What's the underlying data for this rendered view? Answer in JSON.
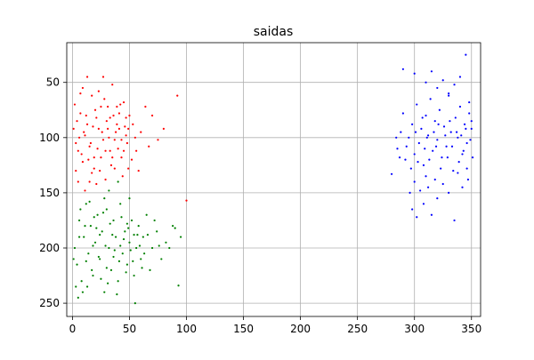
{
  "chart_data": {
    "type": "scatter",
    "title": "saidas",
    "xlabel": "",
    "ylabel": "",
    "xlim": [
      -5,
      358
    ],
    "ylim": [
      262,
      14
    ],
    "y_inverted": true,
    "grid": true,
    "legend": "none",
    "x_ticks": [
      0,
      50,
      100,
      150,
      200,
      250,
      300,
      350
    ],
    "y_ticks": [
      50,
      100,
      150,
      200,
      250
    ],
    "series": [
      {
        "color": "#ff0000",
        "points": [
          [
            2,
            70
          ],
          [
            4,
            85
          ],
          [
            6,
            100
          ],
          [
            8,
            115
          ],
          [
            10,
            95
          ],
          [
            12,
            80
          ],
          [
            14,
            120
          ],
          [
            16,
            105
          ],
          [
            18,
            90
          ],
          [
            20,
            75
          ],
          [
            22,
            110
          ],
          [
            24,
            130
          ],
          [
            26,
            95
          ],
          [
            28,
            65
          ],
          [
            30,
            85
          ],
          [
            32,
            100
          ],
          [
            34,
            125
          ],
          [
            36,
            80
          ],
          [
            38,
            95
          ],
          [
            40,
            110
          ],
          [
            42,
            70
          ],
          [
            44,
            135
          ],
          [
            46,
            90
          ],
          [
            48,
            105
          ],
          [
            50,
            80
          ],
          [
            52,
            120
          ],
          [
            55,
            100
          ],
          [
            58,
            130
          ],
          [
            3,
            130
          ],
          [
            5,
            140
          ],
          [
            7,
            60
          ],
          [
            9,
            55
          ],
          [
            11,
            148
          ],
          [
            13,
            45
          ],
          [
            15,
            140
          ],
          [
            17,
            62
          ],
          [
            19,
            128
          ],
          [
            21,
            142
          ],
          [
            23,
            58
          ],
          [
            25,
            118
          ],
          [
            27,
            45
          ],
          [
            29,
            138
          ],
          [
            31,
            72
          ],
          [
            33,
            112
          ],
          [
            35,
            52
          ],
          [
            37,
            102
          ],
          [
            39,
            88
          ],
          [
            41,
            78
          ],
          [
            43,
            118
          ],
          [
            45,
            68
          ],
          [
            47,
            98
          ],
          [
            49,
            128
          ],
          [
            1,
            92
          ],
          [
            3,
            105
          ],
          [
            5,
            112
          ],
          [
            7,
            78
          ],
          [
            9,
            122
          ],
          [
            11,
            98
          ],
          [
            13,
            88
          ],
          [
            15,
            108
          ],
          [
            17,
            132
          ],
          [
            19,
            118
          ],
          [
            21,
            82
          ],
          [
            23,
            92
          ],
          [
            25,
            72
          ],
          [
            27,
            102
          ],
          [
            29,
            112
          ],
          [
            31,
            92
          ],
          [
            33,
            82
          ],
          [
            35,
            118
          ],
          [
            37,
            128
          ],
          [
            39,
            72
          ],
          [
            41,
            92
          ],
          [
            43,
            102
          ],
          [
            45,
            112
          ],
          [
            47,
            82
          ],
          [
            49,
            92
          ],
          [
            53,
            88
          ],
          [
            56,
            112
          ],
          [
            60,
            95
          ],
          [
            64,
            72
          ],
          [
            67,
            108
          ],
          [
            70,
            80
          ],
          [
            75,
            102
          ],
          [
            80,
            92
          ],
          [
            92,
            62
          ],
          [
            100,
            157
          ]
        ]
      },
      {
        "color": "#008000",
        "points": [
          [
            2,
            200
          ],
          [
            4,
            215
          ],
          [
            6,
            175
          ],
          [
            8,
            230
          ],
          [
            10,
            190
          ],
          [
            12,
            160
          ],
          [
            14,
            205
          ],
          [
            16,
            180
          ],
          [
            18,
            225
          ],
          [
            20,
            195
          ],
          [
            22,
            170
          ],
          [
            24,
            210
          ],
          [
            26,
            185
          ],
          [
            28,
            240
          ],
          [
            30,
            165
          ],
          [
            32,
            200
          ],
          [
            34,
            220
          ],
          [
            36,
            175
          ],
          [
            38,
            190
          ],
          [
            40,
            230
          ],
          [
            42,
            160
          ],
          [
            44,
            205
          ],
          [
            46,
            185
          ],
          [
            48,
            215
          ],
          [
            50,
            195
          ],
          [
            52,
            175
          ],
          [
            54,
            225
          ],
          [
            56,
            200
          ],
          [
            58,
            180
          ],
          [
            60,
            210
          ],
          [
            62,
            190
          ],
          [
            65,
            170
          ],
          [
            68,
            220
          ],
          [
            70,
            200
          ],
          [
            74,
            185
          ],
          [
            78,
            210
          ],
          [
            82,
            195
          ],
          [
            88,
            180
          ],
          [
            3,
            235
          ],
          [
            5,
            245
          ],
          [
            7,
            165
          ],
          [
            9,
            240
          ],
          [
            11,
            180
          ],
          [
            13,
            235
          ],
          [
            15,
            158
          ],
          [
            17,
            220
          ],
          [
            19,
            172
          ],
          [
            21,
            182
          ],
          [
            23,
            208
          ],
          [
            25,
            228
          ],
          [
            27,
            168
          ],
          [
            29,
            198
          ],
          [
            31,
            232
          ],
          [
            33,
            178
          ],
          [
            35,
            188
          ],
          [
            37,
            202
          ],
          [
            39,
            242
          ],
          [
            41,
            212
          ],
          [
            43,
            172
          ],
          [
            45,
            192
          ],
          [
            47,
            222
          ],
          [
            49,
            182
          ],
          [
            51,
            202
          ],
          [
            53,
            212
          ],
          [
            55,
            250
          ],
          [
            57,
            188
          ],
          [
            59,
            198
          ],
          [
            61,
            218
          ],
          [
            63,
            205
          ],
          [
            66,
            188
          ],
          [
            72,
            175
          ],
          [
            76,
            198
          ],
          [
            85,
            200
          ],
          [
            90,
            182
          ],
          [
            93,
            234
          ],
          [
            95,
            190
          ],
          [
            1,
            210
          ],
          [
            6,
            190
          ],
          [
            12,
            212
          ],
          [
            18,
            198
          ],
          [
            24,
            188
          ],
          [
            30,
            218
          ],
          [
            36,
            208
          ],
          [
            42,
            198
          ],
          [
            48,
            178
          ],
          [
            54,
            188
          ],
          [
            32,
            148
          ],
          [
            40,
            140
          ],
          [
            28,
            155
          ],
          [
            50,
            155
          ]
        ]
      },
      {
        "color": "#0000ff",
        "points": [
          [
            280,
            133
          ],
          [
            285,
            110
          ],
          [
            288,
            95
          ],
          [
            290,
            78
          ],
          [
            292,
            120
          ],
          [
            295,
            100
          ],
          [
            298,
            88
          ],
          [
            300,
            115
          ],
          [
            302,
            70
          ],
          [
            304,
            105
          ],
          [
            306,
            92
          ],
          [
            308,
            125
          ],
          [
            310,
            80
          ],
          [
            312,
            98
          ],
          [
            314,
            65
          ],
          [
            316,
            112
          ],
          [
            318,
            85
          ],
          [
            320,
            102
          ],
          [
            322,
            75
          ],
          [
            324,
            118
          ],
          [
            326,
            90
          ],
          [
            328,
            108
          ],
          [
            330,
            60
          ],
          [
            332,
            95
          ],
          [
            334,
            130
          ],
          [
            336,
            82
          ],
          [
            338,
            100
          ],
          [
            340,
            72
          ],
          [
            342,
            115
          ],
          [
            344,
            88
          ],
          [
            346,
            105
          ],
          [
            348,
            78
          ],
          [
            350,
            92
          ],
          [
            296,
            150
          ],
          [
            298,
            165
          ],
          [
            300,
            140
          ],
          [
            302,
            172
          ],
          [
            305,
            148
          ],
          [
            308,
            160
          ],
          [
            310,
            135
          ],
          [
            312,
            145
          ],
          [
            315,
            170
          ],
          [
            318,
            138
          ],
          [
            320,
            155
          ],
          [
            325,
            142
          ],
          [
            330,
            150
          ],
          [
            335,
            175
          ],
          [
            338,
            132
          ],
          [
            342,
            145
          ],
          [
            346,
            128
          ],
          [
            290,
            38
          ],
          [
            300,
            42
          ],
          [
            310,
            50
          ],
          [
            315,
            40
          ],
          [
            320,
            55
          ],
          [
            325,
            48
          ],
          [
            330,
            62
          ],
          [
            335,
            52
          ],
          [
            340,
            45
          ],
          [
            345,
            25
          ],
          [
            348,
            68
          ],
          [
            350,
            85
          ],
          [
            284,
            100
          ],
          [
            287,
            118
          ],
          [
            293,
            108
          ],
          [
            297,
            128
          ],
          [
            301,
            95
          ],
          [
            303,
            122
          ],
          [
            307,
            82
          ],
          [
            309,
            110
          ],
          [
            311,
            100
          ],
          [
            313,
            120
          ],
          [
            317,
            95
          ],
          [
            319,
            108
          ],
          [
            321,
            88
          ],
          [
            323,
            128
          ],
          [
            327,
            98
          ],
          [
            329,
            118
          ],
          [
            331,
            85
          ],
          [
            333,
            108
          ],
          [
            337,
            95
          ],
          [
            339,
            122
          ],
          [
            341,
            98
          ],
          [
            343,
            112
          ],
          [
            345,
            92
          ],
          [
            347,
            138
          ],
          [
            349,
            102
          ],
          [
            351,
            118
          ]
        ]
      }
    ]
  }
}
